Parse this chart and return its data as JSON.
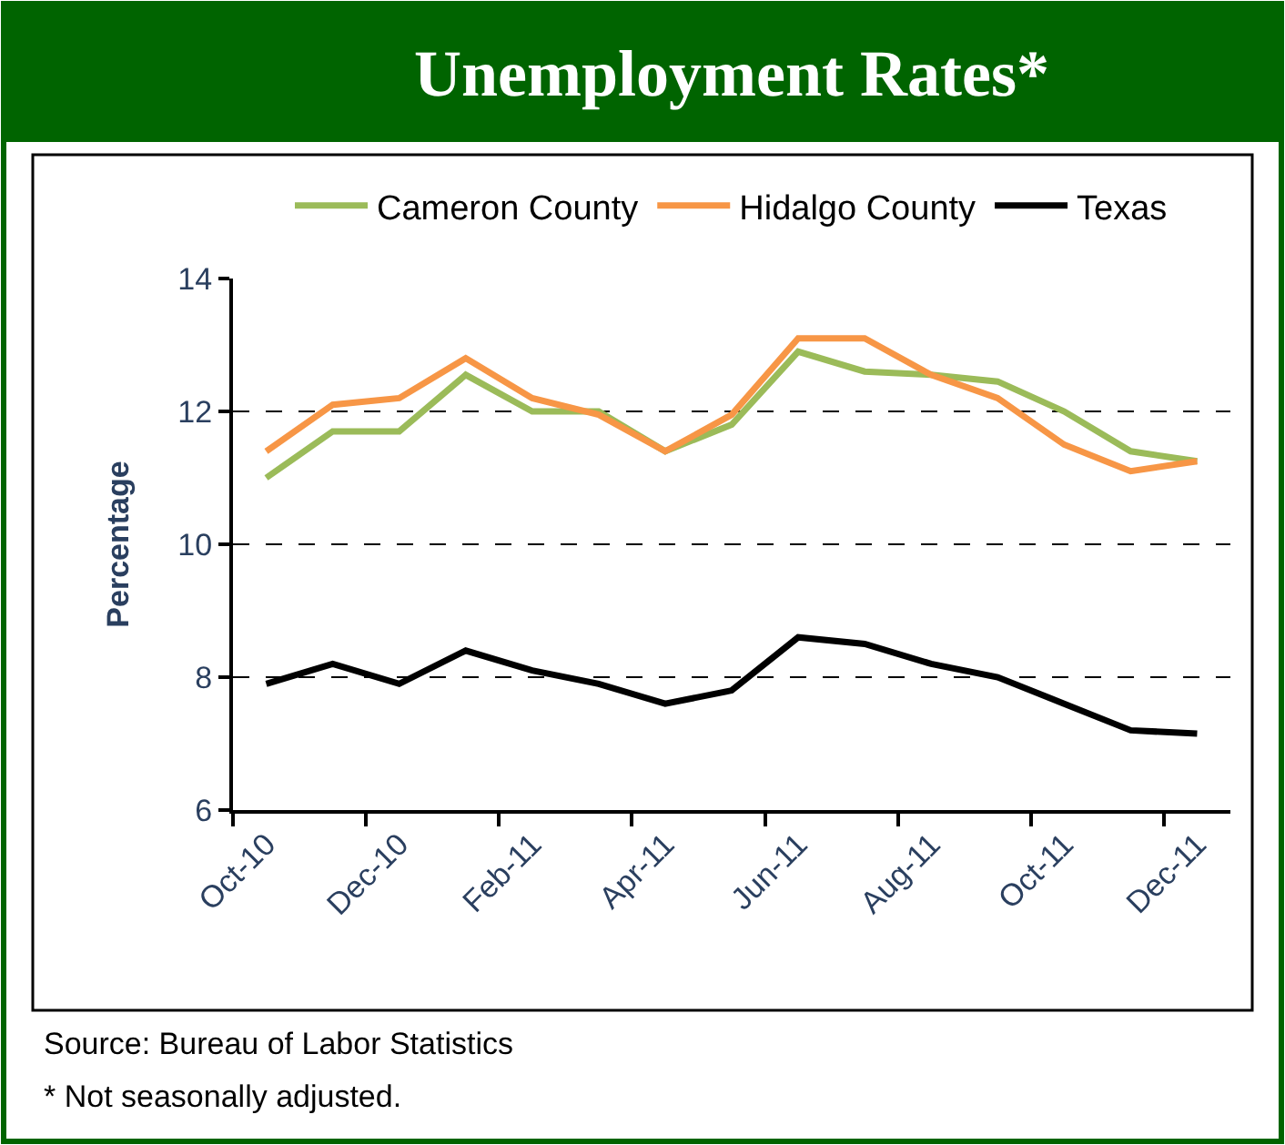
{
  "chart_data": {
    "type": "line",
    "title": "Unemployment Rates*",
    "ylabel": "Percentage",
    "categories": [
      "Oct-10",
      null,
      "Dec-10",
      null,
      "Feb-11",
      null,
      "Apr-11",
      null,
      "Jun-11",
      null,
      "Aug-11",
      null,
      "Oct-11",
      null,
      "Dec-11"
    ],
    "series": [
      {
        "name": "Cameron County",
        "color": "#9bbb59",
        "values": [
          11.0,
          11.7,
          11.7,
          12.55,
          12.0,
          12.0,
          11.4,
          11.8,
          12.9,
          12.6,
          12.55,
          12.45,
          12.0,
          11.4,
          11.25
        ]
      },
      {
        "name": "Hidalgo County",
        "color": "#f79646",
        "values": [
          11.4,
          12.1,
          12.2,
          12.8,
          12.2,
          11.95,
          11.4,
          11.95,
          13.1,
          13.1,
          12.55,
          12.2,
          11.5,
          11.1,
          11.25
        ]
      },
      {
        "name": "Texas",
        "color": "#000000",
        "values": [
          7.9,
          8.2,
          7.9,
          8.4,
          8.1,
          7.9,
          7.6,
          7.8,
          8.6,
          8.5,
          8.2,
          8.0,
          7.6,
          7.2,
          7.15
        ]
      }
    ],
    "ylim": [
      6,
      14
    ],
    "yticks": [
      6,
      8,
      10,
      12,
      14
    ],
    "grid": "y",
    "legend": "top",
    "marker": "none",
    "line_style": "solid",
    "annotations": [
      "Source: Bureau of Labor Statistics",
      "* Not seasonally adjusted."
    ]
  }
}
